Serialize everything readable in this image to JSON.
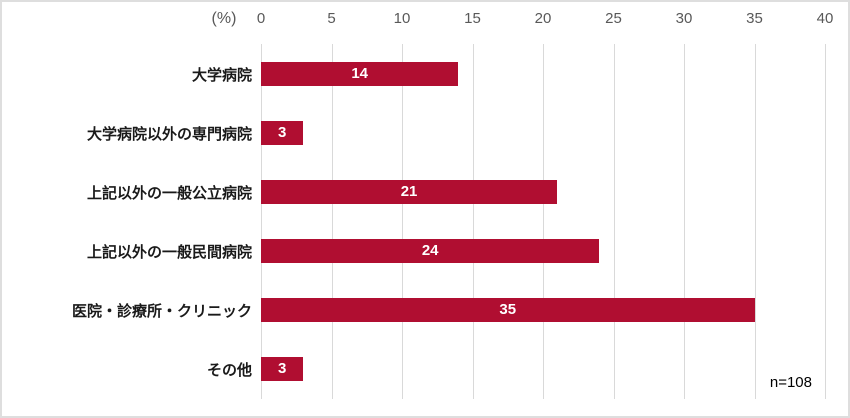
{
  "chart_data": {
    "type": "bar",
    "orientation": "horizontal",
    "title": "",
    "unit_label": "(%)",
    "categories": [
      "大学病院",
      "大学病院以外の専門病院",
      "上記以外の一般公立病院",
      "上記以外の一般民間病院",
      "医院・診療所・クリニック",
      "その他"
    ],
    "values": [
      14,
      3,
      21,
      24,
      35,
      3
    ],
    "xlim": [
      0,
      40
    ],
    "tick_step": 5,
    "tick_labels": [
      "0",
      "5",
      "10",
      "15",
      "20",
      "25",
      "30",
      "35",
      "40"
    ],
    "grid": true,
    "legend": "none",
    "note": "n=108",
    "colors": {
      "bar": "#B00E31",
      "gridline": "#D9D9D9",
      "axis_text": "#595959",
      "category_text": "#1a1a1a",
      "value_label": "#FFFFFF",
      "border": "#DEDEDE"
    }
  }
}
